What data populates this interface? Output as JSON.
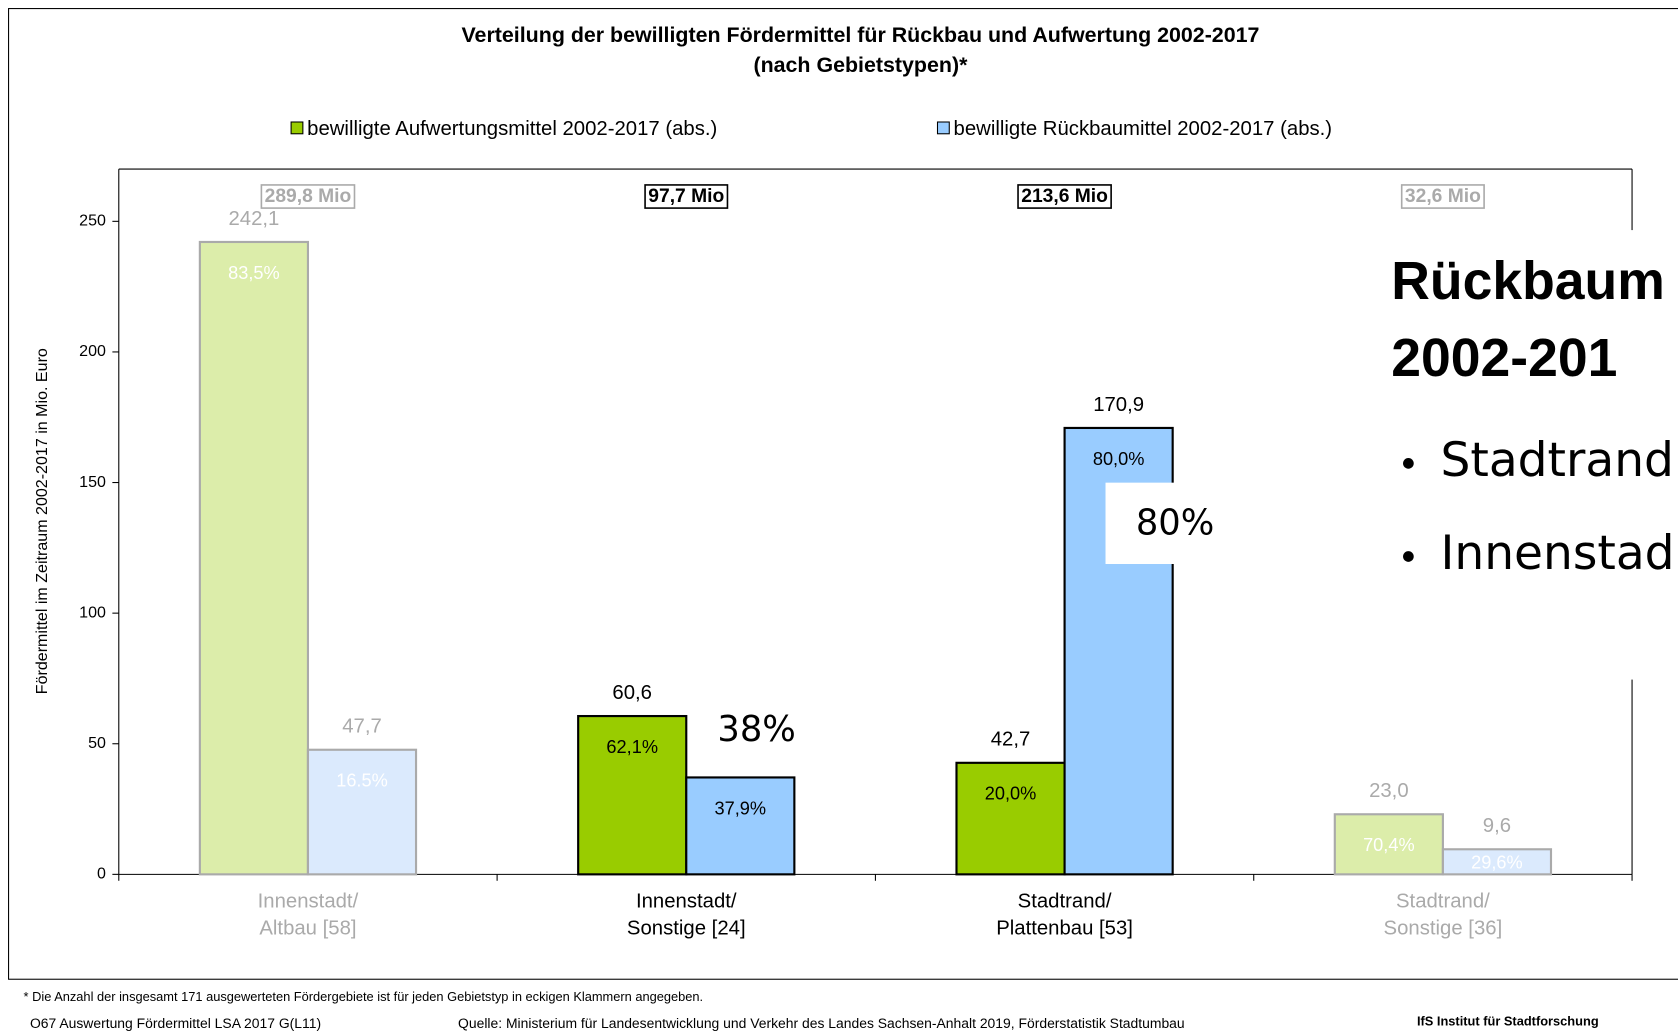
{
  "chart_data": {
    "type": "bar",
    "title": "Verteilung der bewilligten Fördermittel für Rückbau und Aufwertung 2002-2017",
    "subtitle": "(nach Gebietstypen)*",
    "y_label": "Fördermittel im Zeitraum 2002-2017 in Mio. Euro",
    "categories": [
      [
        "Innenstadt/",
        "Altbau [58]"
      ],
      [
        "Innenstadt/",
        "Sonstige [24]"
      ],
      [
        "Stadtrand/",
        "Plattenbau [53]"
      ],
      [
        "Stadtrand/",
        "Sonstige [36]"
      ]
    ],
    "highlighted": [
      false,
      true,
      true,
      false
    ],
    "totals": [
      289.8,
      97.7,
      213.6,
      32.6
    ],
    "total_labels": [
      "289,8 Mio",
      "97,7 Mio",
      "213,6 Mio",
      "32,6 Mio"
    ],
    "series": [
      {
        "name": "bewilligte Aufwertungsmittel 2002-2017 (abs.)",
        "color": "#99cc00",
        "faded_color": "#dcedaa",
        "values": [
          242.1,
          60.6,
          42.7,
          23.0
        ],
        "value_labels": [
          "242,1",
          "60,6",
          "42,7",
          "23,0"
        ],
        "shares": [
          83.5,
          62.1,
          20.0,
          70.4
        ],
        "share_labels": [
          "83,5%",
          "62,1%",
          "20,0%",
          "70,4%"
        ]
      },
      {
        "name": "bewilligte Rückbaumittel 2002-2017 (abs.)",
        "color": "#99ccff",
        "faded_color": "#dbeafd",
        "values": [
          47.7,
          37.1,
          170.9,
          9.6
        ],
        "value_labels": [
          "47,7",
          null,
          "170,9",
          "9,6"
        ],
        "shares": [
          16.5,
          37.9,
          80.0,
          29.6
        ],
        "share_labels": [
          "16.5%",
          "37,9%",
          "80,0%",
          "29,6%"
        ]
      }
    ],
    "ylim": [
      0,
      270
    ],
    "yticks": [
      0,
      50,
      100,
      150,
      200,
      250
    ],
    "legend": "top"
  },
  "footnote": "* Die Anzahl der insgesamt 171 ausgewerteten Fördergebiete ist für jeden Gebietstyp in eckigen Klammern angegeben.",
  "footer": {
    "left": "O67 Auswertung Fördermittel LSA 2017 G(L11)",
    "source": "Quelle: Ministerium für Landesentwicklung und Verkehr des Landes Sachsen-Anhalt 2019, Förderstatistik Stadtumbau",
    "right": "IfS Institut für Stadtforschung"
  },
  "overlay": {
    "heading": [
      "Rückbaum",
      "2002-201"
    ],
    "bullets": [
      "Stadtrand",
      "Innenstad"
    ],
    "callouts": [
      "80%",
      "38%"
    ]
  }
}
